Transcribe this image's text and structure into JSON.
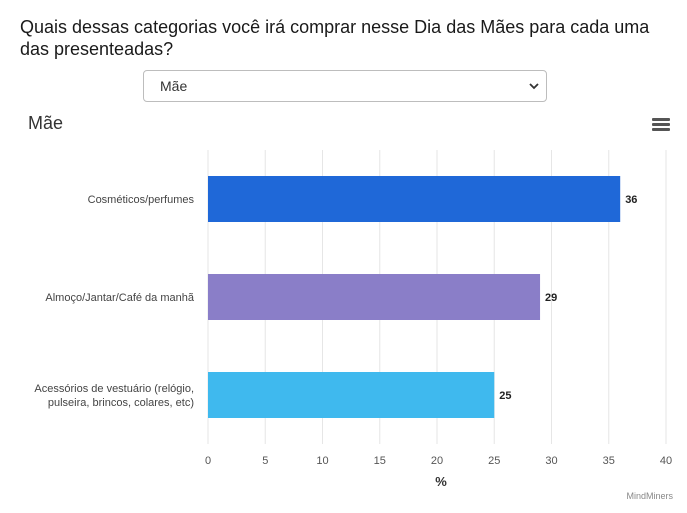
{
  "question": "Quais dessas categorias você irá comprar nesse Dia das Mães para cada uma das presenteadas?",
  "select": {
    "value": "Mãe"
  },
  "menu_icon": "hamburger-menu-icon",
  "credits": "MindMiners",
  "chart_data": {
    "type": "bar",
    "orientation": "horizontal",
    "title": "Mãe",
    "xlabel": "%",
    "ylabel": "",
    "xlim": [
      0,
      40
    ],
    "xticks": [
      0,
      5,
      10,
      15,
      20,
      25,
      30,
      35,
      40
    ],
    "grid": "vertical",
    "categories": [
      [
        "Cosméticos/perfumes"
      ],
      [
        "Almoço/Jantar/Café da manhã"
      ],
      [
        "Acessórios de vestuário (relógio,",
        "pulseira, brincos, colares, etc)"
      ]
    ],
    "values": [
      36,
      29,
      25
    ],
    "colors": [
      "#1f68d8",
      "#8a7ec8",
      "#3fb9ee"
    ]
  }
}
